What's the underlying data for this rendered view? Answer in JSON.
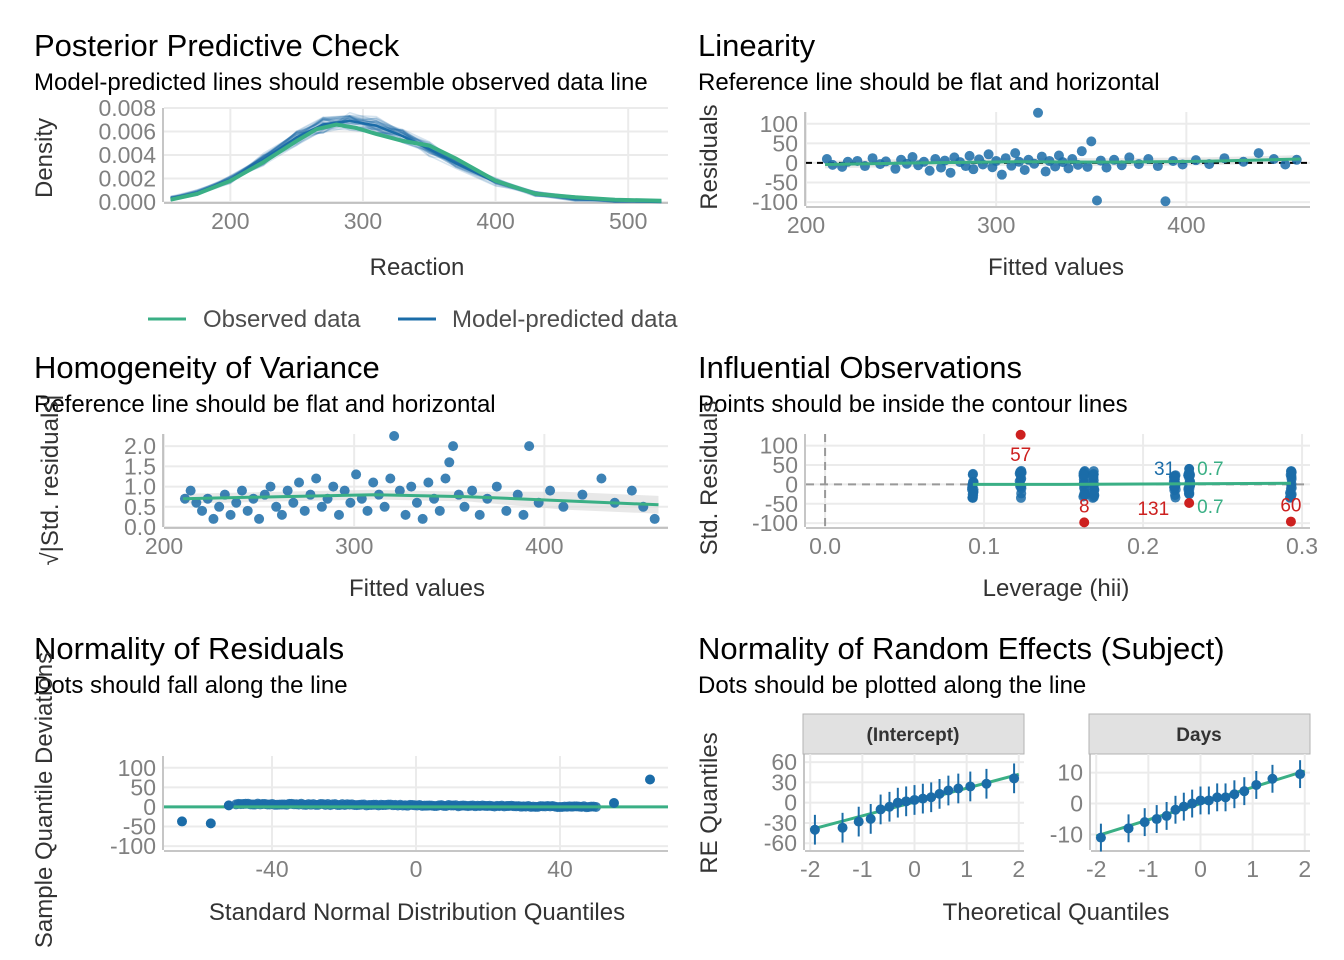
{
  "colors": {
    "observed": "#3aaf85",
    "predicted": "#1b6ca8",
    "outlier": "#cd201f",
    "grid": "#ebebeb",
    "strip_bg": "#e1e1e1",
    "band": "#d9d9d9"
  },
  "panels": {
    "ppc": {
      "title": "Posterior Predictive Check",
      "subtitle": "Model-predicted lines should resemble observed data line",
      "xlabel": "Reaction",
      "ylabel": "Density",
      "legend": {
        "observed": "Observed data",
        "predicted": "Model-predicted data"
      }
    },
    "linearity": {
      "title": "Linearity",
      "subtitle": "Reference line should be flat and horizontal",
      "xlabel": "Fitted values",
      "ylabel": "Residuals"
    },
    "homogeneity": {
      "title": "Homogeneity of Variance",
      "subtitle": "Reference line should be flat and horizontal",
      "xlabel": "Fitted values",
      "ylabel": "√|Std. residuals|"
    },
    "influential": {
      "title": "Influential Observations",
      "subtitle": "Points should be inside the contour lines",
      "xlabel": "Leverage (hii)",
      "ylabel": "Std. Residuals"
    },
    "normality": {
      "title": "Normality of Residuals",
      "subtitle": "Dots should fall along the line",
      "xlabel": "Standard Normal Distribution Quantiles",
      "ylabel": "Sample Quantile Deviations"
    },
    "random_effects": {
      "title": "Normality of Random Effects (Subject)",
      "subtitle": "Dots should be plotted along the line",
      "xlabel": "Theoretical Quantiles",
      "ylabel": "RE Quantiles",
      "facet_intercept": "(Intercept)",
      "facet_days": "Days"
    }
  },
  "chart_data": [
    {
      "id": "ppc",
      "type": "line",
      "xlim": [
        150,
        530
      ],
      "ylim": [
        0,
        0.008
      ],
      "xticks": [
        200,
        300,
        400,
        500
      ],
      "yticks": [
        "0.000",
        "0.002",
        "0.004",
        "0.006",
        "0.008"
      ],
      "series": [
        {
          "name": "Observed data",
          "x": [
            155,
            175,
            200,
            225,
            250,
            265,
            280,
            295,
            310,
            330,
            350,
            370,
            400,
            430,
            460,
            490,
            525
          ],
          "y": [
            0.0002,
            0.0007,
            0.0018,
            0.0034,
            0.0052,
            0.0062,
            0.0066,
            0.0063,
            0.0058,
            0.0052,
            0.0048,
            0.0037,
            0.0018,
            0.0007,
            0.0004,
            0.0002,
            0.0001
          ]
        },
        {
          "name": "Model-predicted data",
          "x": [
            155,
            175,
            200,
            225,
            250,
            270,
            290,
            310,
            330,
            350,
            370,
            400,
            430,
            460,
            490,
            525
          ],
          "y": [
            0.0003,
            0.0008,
            0.0019,
            0.0036,
            0.0055,
            0.0066,
            0.0069,
            0.0065,
            0.0056,
            0.0045,
            0.0033,
            0.0017,
            0.0007,
            0.0003,
            0.0001,
            0.0
          ]
        }
      ]
    },
    {
      "id": "linearity",
      "type": "scatter",
      "xlim": [
        200,
        465
      ],
      "ylim": [
        -110,
        130
      ],
      "xticks": [
        200,
        300,
        400
      ],
      "yticks": [
        -100,
        -50,
        0,
        50,
        100
      ],
      "points": [
        [
          211,
          10
        ],
        [
          214,
          -5
        ],
        [
          219,
          -10
        ],
        [
          222,
          3
        ],
        [
          227,
          5
        ],
        [
          231,
          -8
        ],
        [
          235,
          12
        ],
        [
          239,
          -3
        ],
        [
          242,
          4
        ],
        [
          247,
          -15
        ],
        [
          250,
          8
        ],
        [
          253,
          -2
        ],
        [
          256,
          15
        ],
        [
          259,
          -6
        ],
        [
          262,
          3
        ],
        [
          265,
          -20
        ],
        [
          268,
          10
        ],
        [
          271,
          -12
        ],
        [
          273,
          6
        ],
        [
          276,
          -25
        ],
        [
          278,
          14
        ],
        [
          281,
          2
        ],
        [
          284,
          -8
        ],
        [
          286,
          18
        ],
        [
          288,
          -16
        ],
        [
          291,
          9
        ],
        [
          293,
          -4
        ],
        [
          296,
          22
        ],
        [
          298,
          -11
        ],
        [
          300,
          5
        ],
        [
          303,
          -30
        ],
        [
          305,
          12
        ],
        [
          308,
          -7
        ],
        [
          310,
          25
        ],
        [
          312,
          3
        ],
        [
          315,
          -18
        ],
        [
          317,
          8
        ],
        [
          320,
          -2
        ],
        [
          322,
          128
        ],
        [
          324,
          16
        ],
        [
          326,
          -22
        ],
        [
          328,
          5
        ],
        [
          331,
          -9
        ],
        [
          333,
          19
        ],
        [
          335,
          2
        ],
        [
          338,
          -14
        ],
        [
          340,
          10
        ],
        [
          343,
          -5
        ],
        [
          345,
          30
        ],
        [
          348,
          -10
        ],
        [
          350,
          55
        ],
        [
          353,
          -96
        ],
        [
          355,
          6
        ],
        [
          358,
          -12
        ],
        [
          362,
          8
        ],
        [
          366,
          -6
        ],
        [
          370,
          14
        ],
        [
          375,
          -3
        ],
        [
          380,
          10
        ],
        [
          385,
          -8
        ],
        [
          389,
          -98
        ],
        [
          393,
          5
        ],
        [
          398,
          -4
        ],
        [
          405,
          7
        ],
        [
          412,
          -3
        ],
        [
          420,
          12
        ],
        [
          430,
          3
        ],
        [
          438,
          25
        ],
        [
          446,
          10
        ],
        [
          452,
          -4
        ],
        [
          458,
          8
        ]
      ],
      "smooth": {
        "x": [
          210,
          260,
          310,
          360,
          410,
          460
        ],
        "y": [
          -4,
          0,
          3,
          2,
          4,
          10
        ]
      },
      "refline": 0
    },
    {
      "id": "homogeneity",
      "type": "scatter",
      "xlim": [
        200,
        465
      ],
      "ylim": [
        0,
        2.3
      ],
      "xticks": [
        200,
        300,
        400
      ],
      "yticks": [
        "0.0",
        "0.5",
        "1.0",
        "1.5",
        "2.0"
      ],
      "points": [
        [
          211,
          0.7
        ],
        [
          214,
          0.9
        ],
        [
          217,
          0.6
        ],
        [
          220,
          0.4
        ],
        [
          223,
          0.7
        ],
        [
          226,
          0.2
        ],
        [
          229,
          0.5
        ],
        [
          232,
          0.8
        ],
        [
          235,
          0.3
        ],
        [
          238,
          0.6
        ],
        [
          241,
          0.9
        ],
        [
          244,
          0.4
        ],
        [
          247,
          0.7
        ],
        [
          250,
          0.2
        ],
        [
          253,
          0.8
        ],
        [
          256,
          1.0
        ],
        [
          259,
          0.5
        ],
        [
          262,
          0.3
        ],
        [
          265,
          0.9
        ],
        [
          268,
          0.6
        ],
        [
          271,
          1.1
        ],
        [
          274,
          0.4
        ],
        [
          277,
          0.8
        ],
        [
          280,
          1.2
        ],
        [
          283,
          0.5
        ],
        [
          286,
          0.7
        ],
        [
          289,
          1.0
        ],
        [
          292,
          0.3
        ],
        [
          295,
          0.9
        ],
        [
          298,
          0.6
        ],
        [
          301,
          1.3
        ],
        [
          304,
          0.7
        ],
        [
          307,
          0.4
        ],
        [
          310,
          1.1
        ],
        [
          313,
          0.8
        ],
        [
          316,
          0.5
        ],
        [
          319,
          1.2
        ],
        [
          321,
          2.25
        ],
        [
          324,
          0.9
        ],
        [
          327,
          0.3
        ],
        [
          330,
          1.0
        ],
        [
          333,
          0.6
        ],
        [
          336,
          0.2
        ],
        [
          339,
          1.1
        ],
        [
          342,
          0.7
        ],
        [
          345,
          0.4
        ],
        [
          348,
          1.2
        ],
        [
          350,
          1.6
        ],
        [
          352,
          2.0
        ],
        [
          355,
          0.8
        ],
        [
          358,
          0.5
        ],
        [
          362,
          0.9
        ],
        [
          366,
          0.3
        ],
        [
          370,
          0.7
        ],
        [
          375,
          1.0
        ],
        [
          380,
          0.4
        ],
        [
          386,
          0.8
        ],
        [
          389,
          0.3
        ],
        [
          392,
          2.0
        ],
        [
          397,
          0.6
        ],
        [
          403,
          0.9
        ],
        [
          410,
          0.5
        ],
        [
          420,
          0.8
        ],
        [
          430,
          1.2
        ],
        [
          437,
          0.6
        ],
        [
          446,
          0.9
        ],
        [
          452,
          0.5
        ],
        [
          458,
          0.2
        ]
      ],
      "smooth": {
        "x": [
          210,
          260,
          310,
          360,
          410,
          460
        ],
        "y": [
          0.7,
          0.75,
          0.8,
          0.75,
          0.65,
          0.55
        ]
      }
    },
    {
      "id": "influential",
      "type": "scatter",
      "xlim": [
        -0.012,
        0.305
      ],
      "ylim": [
        -110,
        130
      ],
      "xticks": [
        "0.0",
        "0.1",
        "0.2",
        "0.3"
      ],
      "yticks": [
        -100,
        -50,
        0,
        50,
        100
      ],
      "leverage_groups": [
        0.093,
        0.123,
        0.163,
        0.169,
        0.22,
        0.229,
        0.293
      ],
      "labels": [
        {
          "text": "57",
          "x": 0.123,
          "y": 128,
          "color": "outlier"
        },
        {
          "text": "8",
          "x": 0.163,
          "y": -98,
          "color": "outlier"
        },
        {
          "text": "131",
          "x": 0.229,
          "y": -48,
          "color": "outlier"
        },
        {
          "text": "60",
          "x": 0.293,
          "y": -96,
          "color": "outlier"
        },
        {
          "text": "31",
          "x": 0.229,
          "y": 40,
          "color": "predicted"
        }
      ],
      "contour_labels": [
        "0.7",
        "0.7"
      ],
      "smooth": {
        "x": [
          0.093,
          0.15,
          0.2,
          0.25,
          0.293
        ],
        "y": [
          0,
          0,
          1,
          2,
          3
        ]
      }
    },
    {
      "id": "normality",
      "type": "scatter",
      "xlim": [
        -70,
        70
      ],
      "ylim": [
        -110,
        130
      ],
      "xticks": [
        -40,
        0,
        40
      ],
      "yticks": [
        -100,
        -50,
        0,
        50,
        100
      ],
      "tail_points": [
        [
          -65,
          -37
        ],
        [
          -57,
          -42
        ],
        [
          -52,
          4
        ],
        [
          55,
          10
        ],
        [
          65,
          70
        ]
      ],
      "refline": 0
    },
    {
      "id": "random_effects",
      "type": "scatter",
      "facets": [
        {
          "name": "(Intercept)",
          "xlim": [
            -2.1,
            2.1
          ],
          "ylim": [
            -70,
            72
          ],
          "xticks": [
            -2,
            -1,
            0,
            1,
            2
          ],
          "yticks": [
            -60,
            -30,
            0,
            30,
            60
          ],
          "x": [
            -1.91,
            -1.38,
            -1.07,
            -0.84,
            -0.65,
            -0.48,
            -0.32,
            -0.16,
            0,
            0.16,
            0.32,
            0.48,
            0.65,
            0.84,
            1.07,
            1.38,
            1.91
          ],
          "y": [
            -40,
            -37,
            -28,
            -24,
            -10,
            -6,
            0,
            2,
            4,
            6,
            8,
            13,
            18,
            21,
            24,
            28,
            36
          ],
          "err": 22,
          "line": {
            "x": [
              -2,
              2
            ],
            "y": [
              -40,
              42
            ]
          }
        },
        {
          "name": "Days",
          "xlim": [
            -2.1,
            2.1
          ],
          "ylim": [
            -15,
            16
          ],
          "xticks": [
            -2,
            -1,
            0,
            1,
            2
          ],
          "yticks": [
            -10,
            0,
            10
          ],
          "x": [
            -1.91,
            -1.38,
            -1.07,
            -0.84,
            -0.65,
            -0.48,
            -0.32,
            -0.16,
            0,
            0.16,
            0.32,
            0.48,
            0.65,
            0.84,
            1.07,
            1.38,
            1.91
          ],
          "y": [
            -11,
            -8,
            -6,
            -5,
            -4,
            -2,
            -1,
            0,
            1,
            1,
            2,
            2,
            3,
            4,
            6,
            8,
            9.5
          ],
          "err": 4.5,
          "line": {
            "x": [
              -2,
              2
            ],
            "y": [
              -10.5,
              10.5
            ]
          }
        }
      ]
    }
  ]
}
